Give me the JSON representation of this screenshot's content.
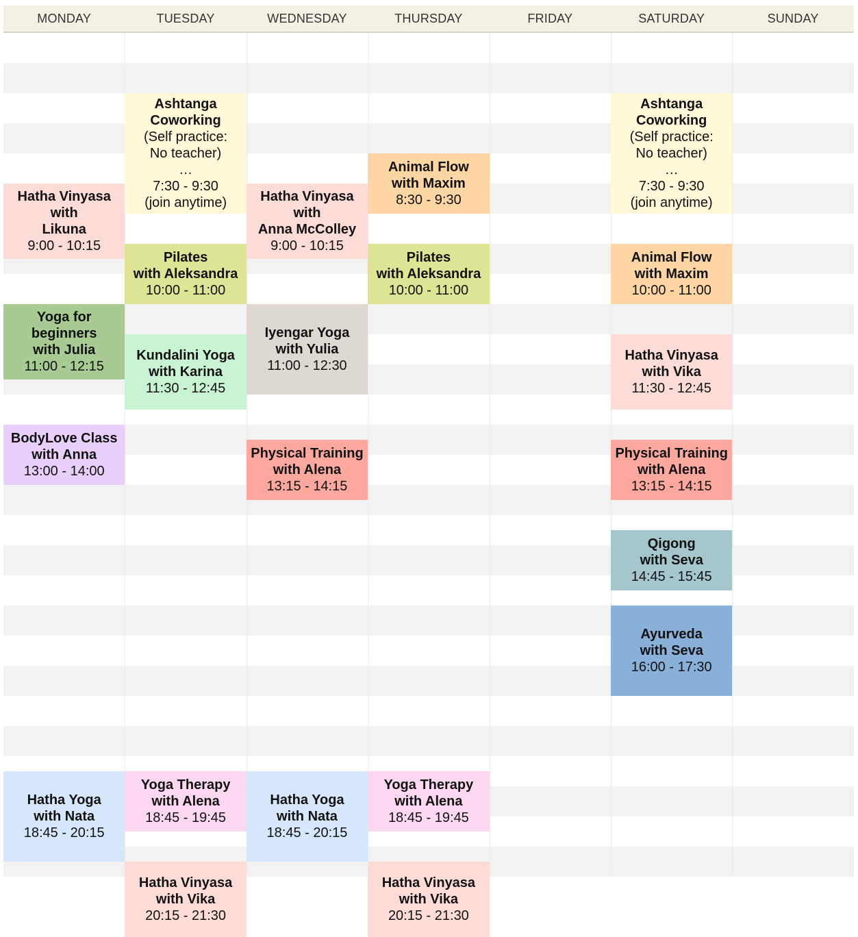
{
  "days": [
    "MONDAY",
    "TUESDAY",
    "WEDNESDAY",
    "THURSDAY",
    "FRIDAY",
    "SATURDAY",
    "SUNDAY"
  ],
  "events": [
    {
      "day": "TUESDAY",
      "title": "Ashtanga\nCoworking",
      "note": "(Self practice:\nNo teacher)\n…",
      "time": "7:30 - 9:30",
      "extra": "(join anytime)",
      "color": "#fff8d9"
    },
    {
      "day": "SATURDAY",
      "title": "Ashtanga\nCoworking",
      "note": "(Self practice:\nNo teacher)\n…",
      "time": "7:30 - 9:30",
      "extra": "(join anytime)",
      "color": "#fff8d9"
    },
    {
      "day": "THURSDAY",
      "title": "Animal Flow\nwith Maxim",
      "time": "8:30 - 9:30",
      "color": "#fed6a4"
    },
    {
      "day": "MONDAY",
      "title": "Hatha Vinyasa\nwith\nLikuna",
      "time": "9:00 - 10:15",
      "color": "#fddcd7"
    },
    {
      "day": "WEDNESDAY",
      "title": "Hatha Vinyasa\nwith\nAnna McColley",
      "time": "9:00 - 10:15",
      "color": "#fddcd7"
    },
    {
      "day": "TUESDAY",
      "title": "Pilates\nwith Aleksandra",
      "time": "10:00 - 11:00",
      "color": "#dde595"
    },
    {
      "day": "THURSDAY",
      "title": "Pilates\nwith Aleksandra",
      "time": "10:00 - 11:00",
      "color": "#dde595"
    },
    {
      "day": "SATURDAY",
      "title": "Animal Flow\nwith Maxim",
      "time": "10:00 - 11:00",
      "color": "#fed6a4"
    },
    {
      "day": "MONDAY",
      "title": "Yoga for\nbeginners\nwith Julia",
      "time": "11:00 - 12:15",
      "color": "#a7cb93"
    },
    {
      "day": "WEDNESDAY",
      "title": "Iyengar Yoga\nwith Yulia",
      "time": "11:00 - 12:30",
      "color": "#ddd8d0"
    },
    {
      "day": "TUESDAY",
      "title": "Kundalini Yoga\nwith Karina",
      "time": "11:30 - 12:45",
      "color": "#c9f4d3"
    },
    {
      "day": "SATURDAY",
      "title": "Hatha Vinyasa\nwith Vika",
      "time": "11:30 - 12:45",
      "color": "#fddcd7"
    },
    {
      "day": "MONDAY",
      "title": "BodyLove Class\nwith Anna",
      "time": "13:00 - 14:00",
      "color": "#e8d0fb"
    },
    {
      "day": "WEDNESDAY",
      "title": "Physical Training\nwith Alena",
      "time": "13:15 - 14:15",
      "color": "#fca89e"
    },
    {
      "day": "SATURDAY",
      "title": "Physical Training\nwith Alena",
      "time": "13:15 - 14:15",
      "color": "#fca89e"
    },
    {
      "day": "SATURDAY",
      "title": "Qigong\nwith Seva",
      "time": "14:45 - 15:45",
      "color": "#a5c7cc"
    },
    {
      "day": "SATURDAY",
      "title": "Ayurveda\nwith Seva",
      "time": "16:00 - 17:30",
      "color": "#89b0d8"
    },
    {
      "day": "MONDAY",
      "title": "Hatha Yoga\nwith Nata",
      "time": "18:45 - 20:15",
      "color": "#d7e7fb"
    },
    {
      "day": "TUESDAY",
      "title": "Yoga Therapy\nwith Alena",
      "time": "18:45 - 19:45",
      "color": "#fbd8ef"
    },
    {
      "day": "WEDNESDAY",
      "title": "Hatha Yoga\nwith Nata",
      "time": "18:45 - 20:15",
      "color": "#d7e7fb"
    },
    {
      "day": "THURSDAY",
      "title": "Yoga Therapy\nwith Alena",
      "time": "18:45 - 19:45",
      "color": "#fbd8ef"
    },
    {
      "day": "TUESDAY",
      "title": "Hatha Vinyasa\nwith Vika",
      "time": "20:15 - 21:30",
      "color": "#fddcd7"
    },
    {
      "day": "THURSDAY",
      "title": "Hatha Vinyasa\nwith Vika",
      "time": "20:15 - 21:30",
      "color": "#fddcd7"
    }
  ]
}
